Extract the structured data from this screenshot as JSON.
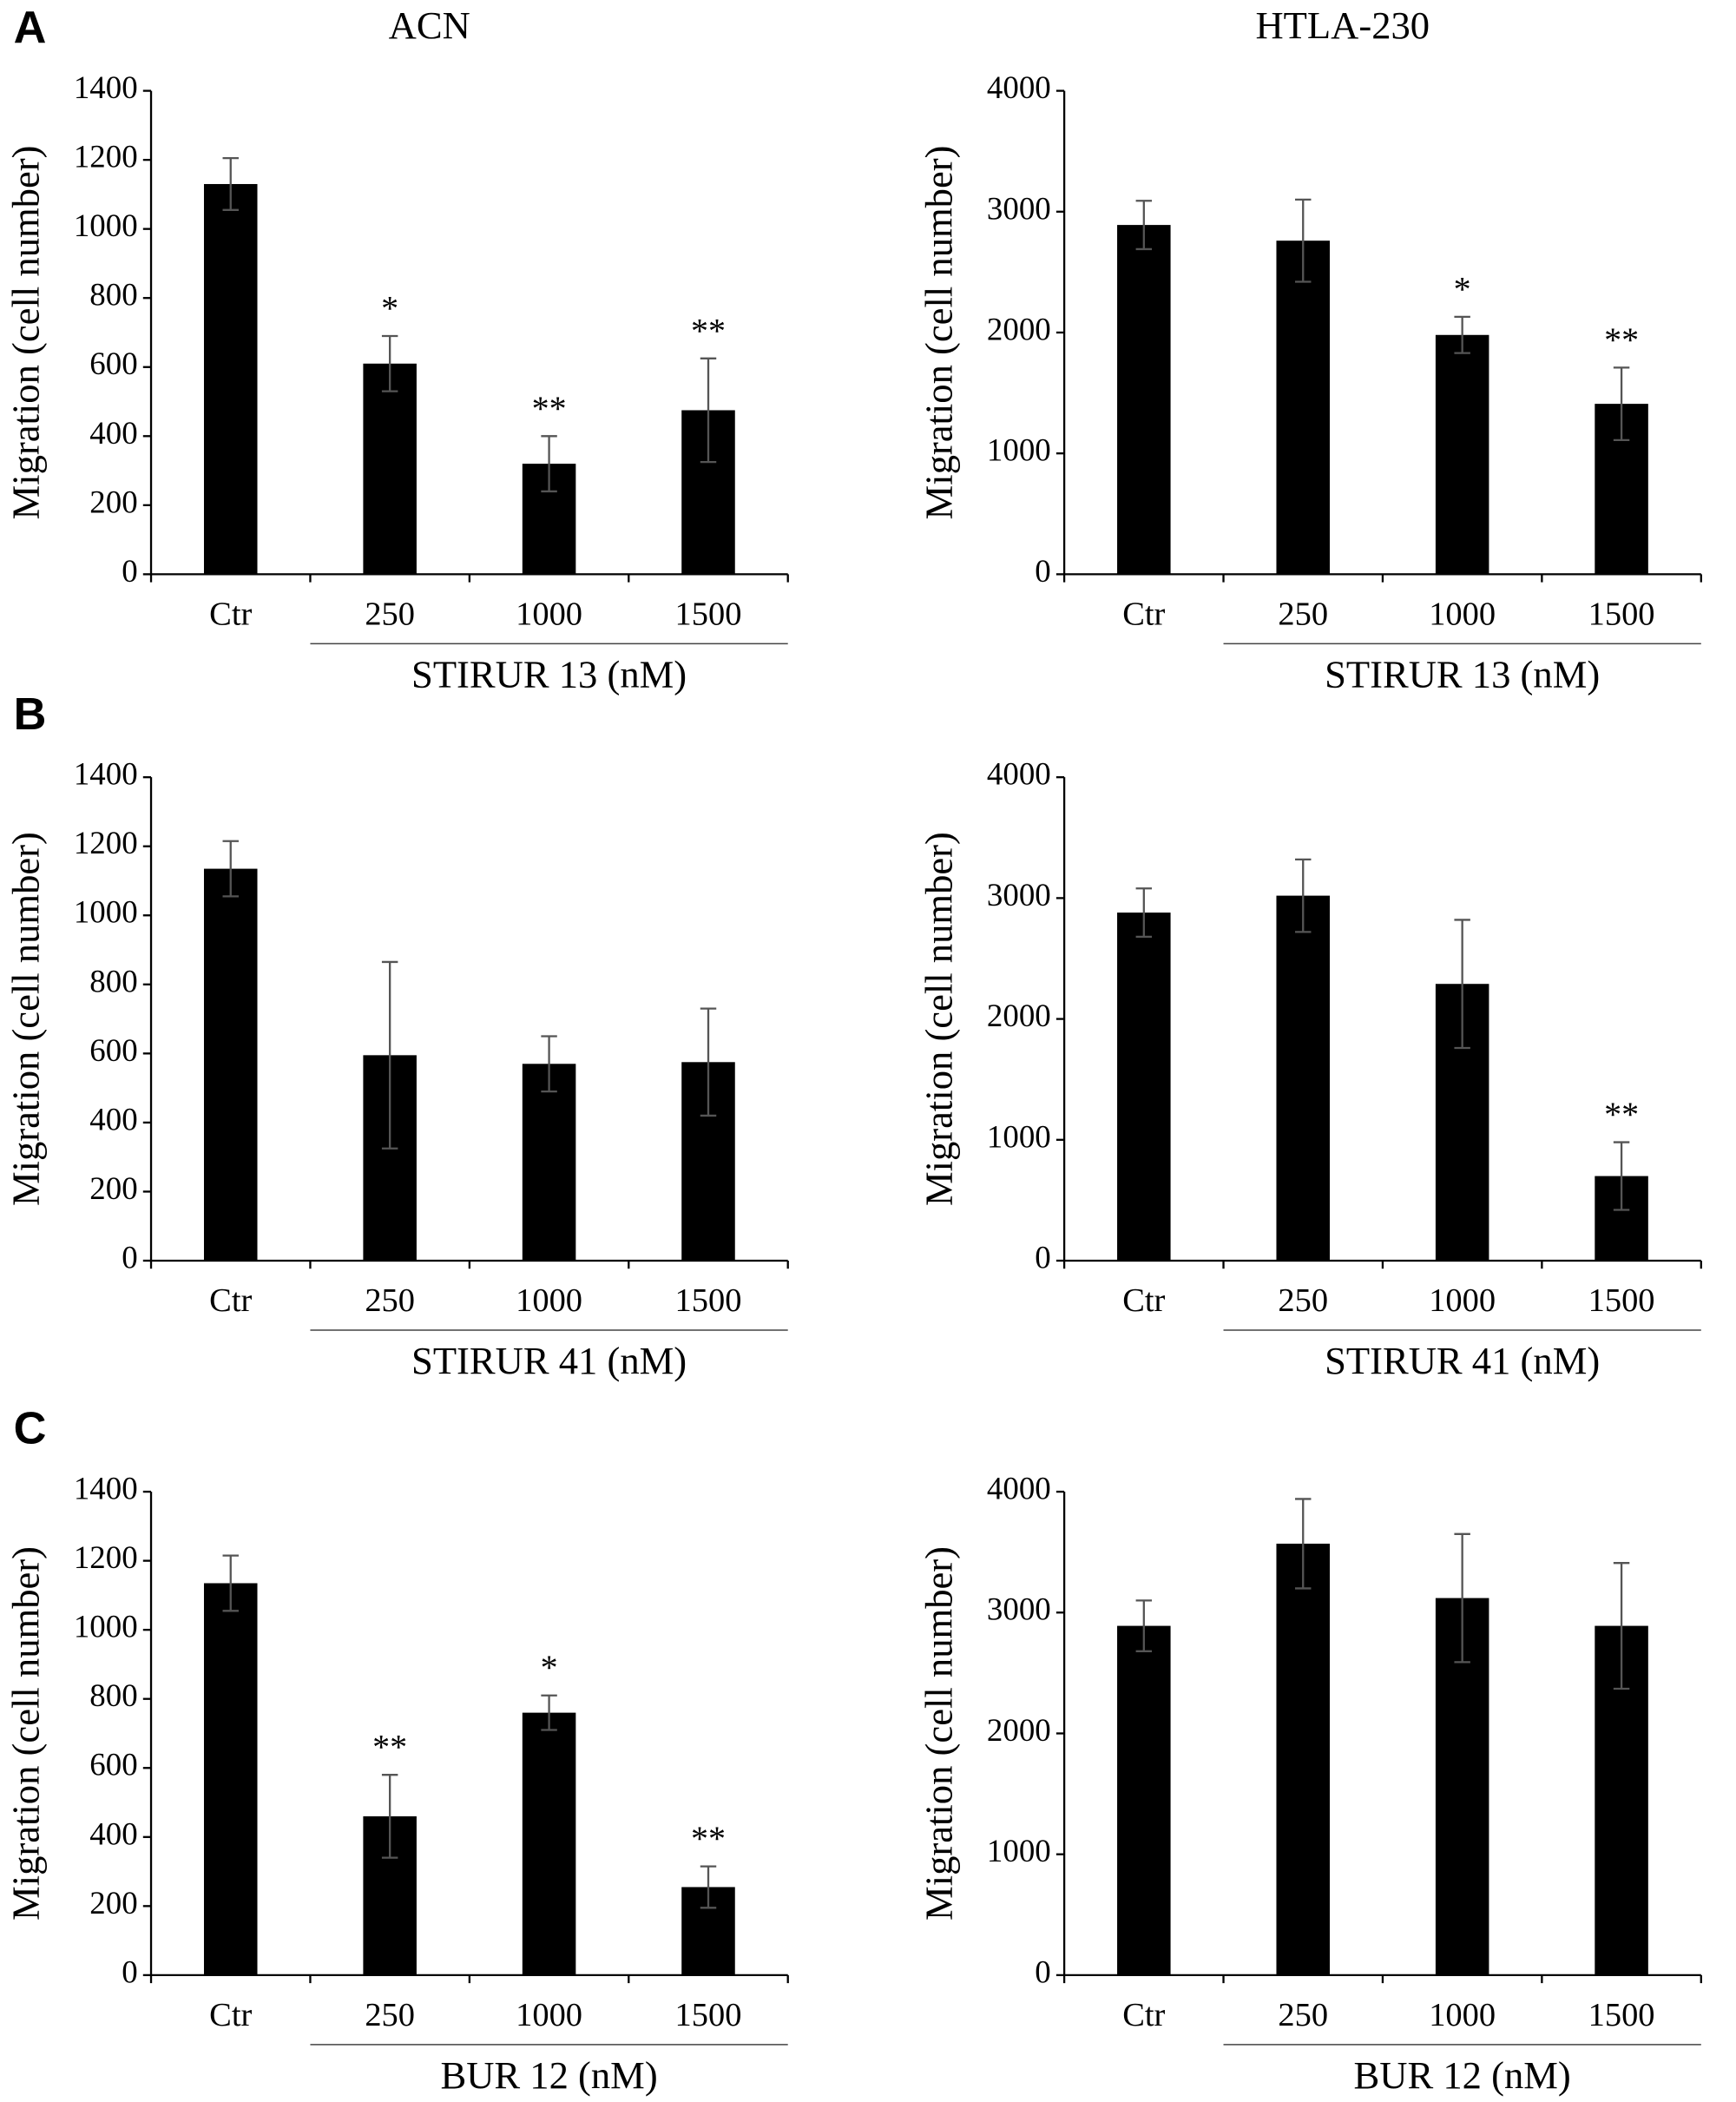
{
  "chart_data": [
    {
      "type": "bar",
      "panel": "A",
      "title": "ACN",
      "y_label": "Migration (cell number)",
      "group_label": "STIRUR 13 (nM)",
      "categories": [
        "Ctr",
        "250",
        "1000",
        "1500"
      ],
      "values": [
        1130,
        610,
        320,
        475
      ],
      "errors": [
        75,
        80,
        80,
        150
      ],
      "annotations": [
        null,
        "*",
        "**",
        "**"
      ],
      "color": "#000000",
      "ylim": [
        0,
        1400
      ],
      "yticks": [
        0,
        200,
        400,
        600,
        800,
        1000,
        1200,
        1400
      ]
    },
    {
      "type": "bar",
      "title": "HTLA-230",
      "y_label": "Migration (cell number)",
      "group_label": "STIRUR 13 (nM)",
      "categories": [
        "Ctr",
        "250",
        "1000",
        "1500"
      ],
      "values": [
        2890,
        2760,
        1980,
        1410
      ],
      "errors": [
        200,
        340,
        150,
        300
      ],
      "annotations": [
        null,
        null,
        "*",
        "**"
      ],
      "color": "#000000",
      "ylim": [
        0,
        4000
      ],
      "yticks": [
        0,
        1000,
        2000,
        3000,
        4000
      ]
    },
    {
      "type": "bar",
      "panel": "B",
      "y_label": "Migration (cell number)",
      "group_label": "STIRUR 41 (nM)",
      "categories": [
        "Ctr",
        "250",
        "1000",
        "1500"
      ],
      "values": [
        1135,
        595,
        570,
        575
      ],
      "errors": [
        80,
        270,
        80,
        155
      ],
      "color": "#000000",
      "ylim": [
        0,
        1400
      ],
      "yticks": [
        0,
        200,
        400,
        600,
        800,
        1000,
        1200,
        1400
      ]
    },
    {
      "type": "bar",
      "y_label": "Migration (cell number)",
      "group_label": "STIRUR 41 (nM)",
      "categories": [
        "Ctr",
        "250",
        "1000",
        "1500"
      ],
      "values": [
        2880,
        3020,
        2290,
        700
      ],
      "errors": [
        200,
        300,
        530,
        280
      ],
      "annotations": [
        null,
        null,
        null,
        "**"
      ],
      "color": "#000000",
      "ylim": [
        0,
        4000
      ],
      "yticks": [
        0,
        1000,
        2000,
        3000,
        4000
      ]
    },
    {
      "type": "bar",
      "panel": "C",
      "y_label": "Migration (cell number)",
      "group_label": "BUR 12 (nM)",
      "categories": [
        "Ctr",
        "250",
        "1000",
        "1500"
      ],
      "values": [
        1135,
        460,
        760,
        255
      ],
      "errors": [
        80,
        120,
        50,
        60
      ],
      "annotations": [
        null,
        "**",
        "*",
        "**"
      ],
      "color": "#000000",
      "ylim": [
        0,
        1400
      ],
      "yticks": [
        0,
        200,
        400,
        600,
        800,
        1000,
        1200,
        1400
      ]
    },
    {
      "type": "bar",
      "y_label": "Migration (cell number)",
      "group_label": "BUR 12 (nM)",
      "categories": [
        "Ctr",
        "250",
        "1000",
        "1500"
      ],
      "values": [
        2890,
        3570,
        3120,
        2890
      ],
      "errors": [
        210,
        370,
        530,
        520
      ],
      "color": "#000000",
      "ylim": [
        0,
        4000
      ],
      "yticks": [
        0,
        1000,
        2000,
        3000,
        4000
      ]
    }
  ]
}
